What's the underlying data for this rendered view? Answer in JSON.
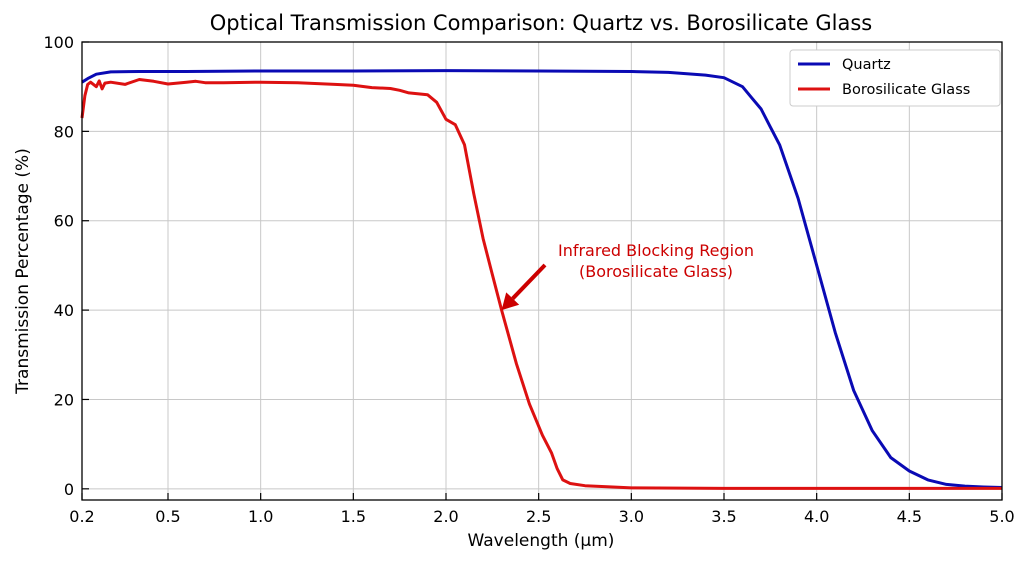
{
  "chart_data": {
    "type": "line",
    "title": "Optical Transmission Comparison: Quartz vs. Borosilicate Glass",
    "xlabel": "Wavelength (μm)",
    "ylabel": "Transmission Percentage (%)",
    "xlim": [
      0.2,
      5.0
    ],
    "ylim": [
      -2.5,
      100
    ],
    "xticks": [
      "0.2",
      "0.5",
      "1.0",
      "1.5",
      "2.0",
      "2.5",
      "3.0",
      "3.5",
      "4.0",
      "4.5",
      "5.0"
    ],
    "yticks": [
      "0",
      "20",
      "40",
      "60",
      "80",
      "100"
    ],
    "grid": true,
    "legend_position": "top-right",
    "series": [
      {
        "name": "Quartz",
        "color": "#0a0ab4",
        "x": [
          0.2,
          0.22,
          0.25,
          0.3,
          0.4,
          0.6,
          1.0,
          1.5,
          2.0,
          2.5,
          3.0,
          3.2,
          3.4,
          3.5,
          3.6,
          3.65,
          3.7,
          3.75,
          3.8,
          3.9,
          4.0,
          4.1,
          4.2,
          4.3,
          4.4,
          4.5,
          4.6,
          4.7,
          4.8,
          4.9,
          5.0
        ],
        "y": [
          91,
          91.8,
          92.8,
          93.3,
          93.4,
          93.4,
          93.5,
          93.5,
          93.6,
          93.5,
          93.4,
          93.2,
          92.6,
          92,
          90,
          87.5,
          85,
          81,
          77,
          65,
          50,
          35,
          22,
          13,
          7,
          4,
          2,
          1,
          0.6,
          0.4,
          0.3
        ]
      },
      {
        "name": "Borosilicate Glass",
        "color": "#dd1111",
        "x": [
          0.2,
          0.21,
          0.22,
          0.23,
          0.25,
          0.26,
          0.27,
          0.28,
          0.3,
          0.35,
          0.4,
          0.45,
          0.5,
          0.6,
          0.65,
          0.7,
          0.8,
          1.0,
          1.2,
          1.4,
          1.5,
          1.6,
          1.7,
          1.75,
          1.8,
          1.9,
          1.95,
          2.0,
          2.05,
          2.1,
          2.15,
          2.2,
          2.25,
          2.3,
          2.38,
          2.45,
          2.52,
          2.57,
          2.6,
          2.63,
          2.67,
          2.75,
          2.9,
          3.0,
          3.5,
          4.0,
          4.5,
          5.0
        ],
        "y": [
          83,
          88,
          90.5,
          91,
          90,
          91.3,
          89.5,
          90.8,
          91,
          90.5,
          91.6,
          91.2,
          90.6,
          91,
          91.2,
          90.9,
          90.9,
          91,
          90.9,
          90.5,
          90.3,
          89.8,
          89.6,
          89.2,
          88.6,
          88.2,
          86.5,
          82.7,
          81.5,
          77,
          66,
          56,
          48,
          40,
          28,
          19,
          12,
          8,
          4.5,
          2,
          1.2,
          0.7,
          0.4,
          0.2,
          0.1,
          0.1,
          0.1,
          0.1
        ]
      }
    ],
    "annotation": {
      "lines": [
        "Infrared Blocking Region",
        "(Borosilicate Glass)"
      ],
      "color": "#cc0000",
      "arrow_target": [
        2.3,
        40
      ],
      "text_anchor": [
        2.55,
        50
      ]
    }
  }
}
